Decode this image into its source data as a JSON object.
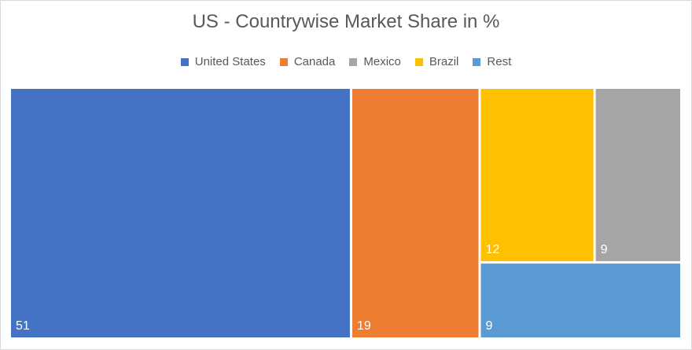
{
  "chart_data": {
    "type": "treemap",
    "title": "US - Countrywise Market Share in %",
    "legend_position": "top",
    "categories": [
      "United States",
      "Canada",
      "Mexico",
      "Brazil",
      "Rest"
    ],
    "values": [
      51,
      19,
      9,
      12,
      9
    ],
    "colors": {
      "United States": "#4472c4",
      "Canada": "#ed7d31",
      "Mexico": "#a5a5a5",
      "Brazil": "#ffc000",
      "Rest": "#5b9bd5"
    }
  }
}
